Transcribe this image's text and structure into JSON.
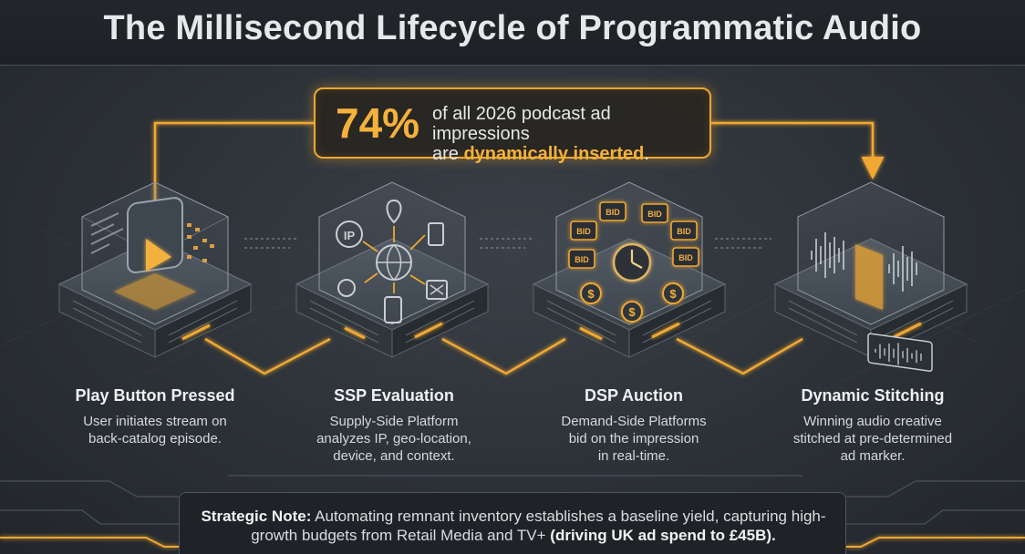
{
  "header": {
    "title": "The Millisecond Lifecycle of Programmatic Audio"
  },
  "stat": {
    "value": "74%",
    "line1": "of all 2026 podcast ad impressions",
    "line2_prefix": "are ",
    "line2_highlight": "dynamically inserted",
    "line2_suffix": "."
  },
  "steps": [
    {
      "title": "Play Button Pressed",
      "desc1": "User initiates stream on",
      "desc2": "back-catalog episode.",
      "desc3": ""
    },
    {
      "title": "SSP Evaluation",
      "desc1": "Supply-Side Platform",
      "desc2": "analyzes IP, geo-location,",
      "desc3": "device, and context."
    },
    {
      "title": "DSP Auction",
      "desc1": "Demand-Side Platforms",
      "desc2": "bid on the impression",
      "desc3": "in real-time."
    },
    {
      "title": "Dynamic Stitching",
      "desc1": "Winning audio creative",
      "desc2": "stitched at pre-determined",
      "desc3": "ad marker."
    }
  ],
  "icons": {
    "ip_label": "IP",
    "bid_label": "BID",
    "dollar_label": "$"
  },
  "note": {
    "label": "Strategic Note:",
    "text": " Automating remnant inventory establishes a baseline yield, capturing high-growth budgets from Retail Media and TV+ ",
    "bold_end": "(driving UK ad spend to £45B)."
  },
  "colors": {
    "accent": "#f4b13c",
    "background": "#2c3137",
    "text": "#e8eaec"
  }
}
